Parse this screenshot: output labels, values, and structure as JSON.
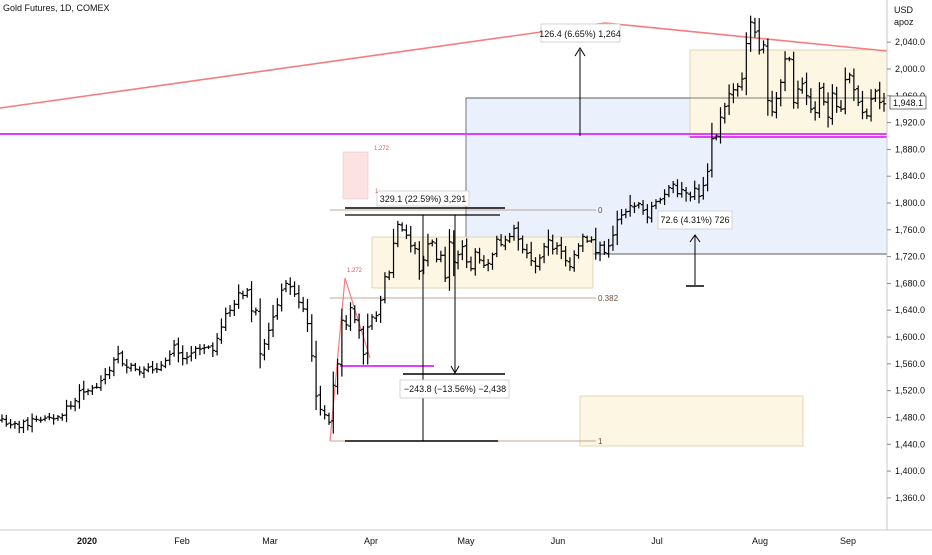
{
  "header": {
    "symbol_label": "Gold Futures, 1D, COMEX"
  },
  "price_scale": {
    "currency": "USD",
    "unit_label": "apoz",
    "last_price": "1,948.1"
  },
  "colors": {
    "bars": "#000000",
    "trendline": "#f77c80",
    "horizontal_line": "#e040fb",
    "range_box_fill": "#fdf6e3",
    "range_box_border": "#d8cfa8",
    "measure_box_fill": "#eaf1fd",
    "fib_line": "#b08a72",
    "red_box_fill": "#fde2e4"
  },
  "chart_data": {
    "type": "ohlc",
    "ylim": [
      1330,
      2085
    ],
    "y_ticks": [
      "2,040.0",
      "2,000.0",
      "1,960.0",
      "1,920.0",
      "1,880.0",
      "1,840.0",
      "1,800.0",
      "1,760.0",
      "1,720.0",
      "1,680.0",
      "1,640.0",
      "1,600.0",
      "1,560.0",
      "1,520.0",
      "1,480.0",
      "1,440.0",
      "1,400.0",
      "1,360.0"
    ],
    "x_ticks": [
      "2020",
      "Feb",
      "Mar",
      "Apr",
      "May",
      "Jun",
      "Jul",
      "Aug",
      "Sep"
    ],
    "closes": [
      1478,
      1470,
      1469,
      1471,
      1465,
      1474,
      1468,
      1478,
      1477,
      1476,
      1479,
      1480,
      1478,
      1481,
      1483,
      1497,
      1497,
      1505,
      1520,
      1518,
      1520,
      1524,
      1525,
      1535,
      1544,
      1550,
      1566,
      1575,
      1560,
      1555,
      1558,
      1552,
      1548,
      1552,
      1555,
      1551,
      1552,
      1558,
      1565,
      1574,
      1588,
      1576,
      1568,
      1570,
      1576,
      1583,
      1582,
      1584,
      1585,
      1580,
      1598,
      1615,
      1635,
      1640,
      1649,
      1666,
      1662,
      1670,
      1639,
      1640,
      1575,
      1590,
      1610,
      1630,
      1648,
      1670,
      1680,
      1675,
      1664,
      1652,
      1642,
      1620,
      1572,
      1512,
      1492,
      1484,
      1473,
      1528,
      1560,
      1625,
      1618,
      1644,
      1626,
      1610,
      1574,
      1615,
      1630,
      1632,
      1655,
      1690,
      1696,
      1740,
      1768,
      1760,
      1752,
      1736,
      1732,
      1698,
      1715,
      1739,
      1742,
      1716,
      1722,
      1688,
      1742,
      1712,
      1723,
      1735,
      1712,
      1702,
      1727,
      1715,
      1707,
      1710,
      1723,
      1746,
      1738,
      1745,
      1750,
      1762,
      1746,
      1731,
      1725,
      1714,
      1706,
      1718,
      1735,
      1745,
      1731,
      1736,
      1728,
      1714,
      1705,
      1723,
      1736,
      1750,
      1743,
      1745,
      1726,
      1737,
      1726,
      1736,
      1752,
      1775,
      1782,
      1787,
      1796,
      1795,
      1799,
      1789,
      1779,
      1795,
      1802,
      1805,
      1813,
      1823,
      1828,
      1814,
      1820,
      1815,
      1809,
      1822,
      1810,
      1826,
      1847,
      1896,
      1900,
      1928,
      1944,
      1963,
      1969,
      1974,
      1985,
      2038,
      2070,
      2055,
      2028,
      2036,
      1953,
      1936,
      1956,
      1980,
      2015,
      2015,
      1950,
      1970,
      1978,
      1960,
      1940,
      1935,
      1971,
      1951,
      1928,
      1964,
      1944,
      1940,
      1984,
      1991,
      1969,
      1950,
      1935,
      1930,
      1955,
      1967,
      1950,
      1948
    ]
  },
  "annotations": {
    "measure_top": "126.4 (6.65%) 1,264",
    "measure_range": "329.1 (22.59%) 3,291",
    "measure_right": "72.6 (4.31%) 726",
    "measure_drop": "−243.8 (−13.56%) −2,438",
    "fib_0": "0",
    "fib_0382": "0.382",
    "fib_1": "1",
    "fib_1272_a": "1.272",
    "fib_1272_b": "1.272"
  }
}
